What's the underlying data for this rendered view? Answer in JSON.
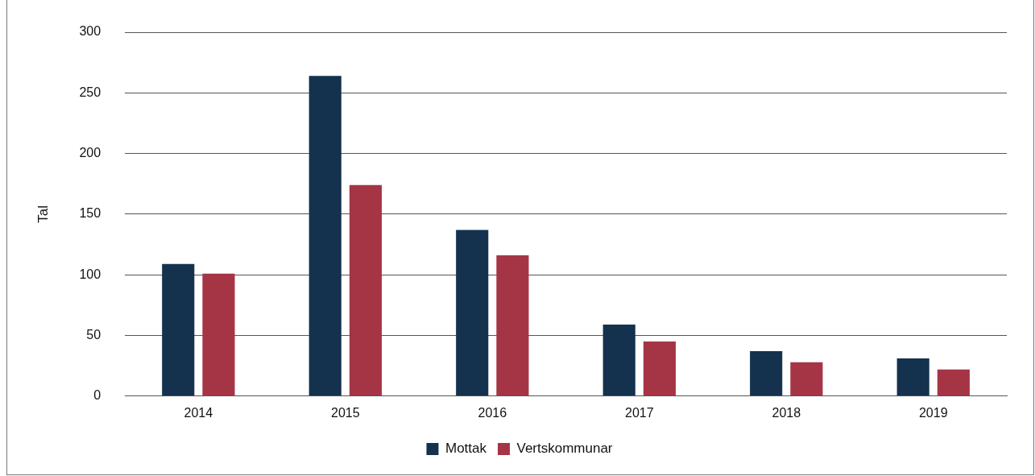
{
  "chart_data": {
    "type": "bar",
    "ylabel": "Tal",
    "categories": [
      "2014",
      "2015",
      "2016",
      "2017",
      "2018",
      "2019"
    ],
    "series": [
      {
        "name": "Mottak",
        "color": "#14324d",
        "values": [
          109,
          264,
          137,
          59,
          37,
          31
        ]
      },
      {
        "name": "Vertskommunar",
        "color": "#a53545",
        "values": [
          101,
          174,
          116,
          45,
          28,
          22
        ]
      }
    ],
    "ylim": [
      0,
      300
    ],
    "yticks": [
      0,
      50,
      100,
      150,
      200,
      250,
      300
    ],
    "grid": "y",
    "legend": "bottom"
  }
}
